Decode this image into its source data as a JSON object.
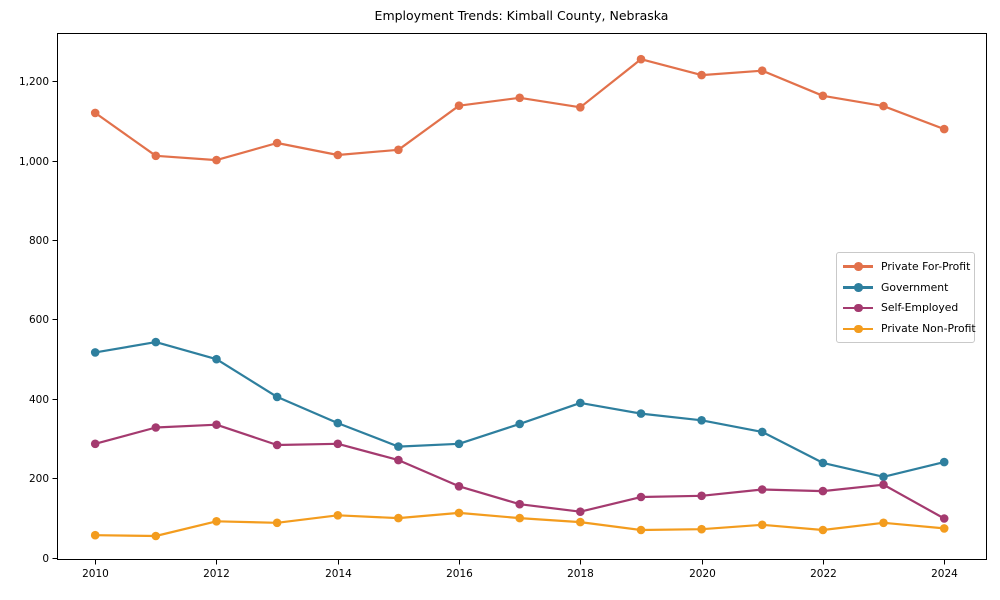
{
  "chart_data": {
    "type": "line",
    "title": "Employment Trends: Kimball County, Nebraska",
    "xlabel": "",
    "ylabel": "",
    "x": [
      2010,
      2011,
      2012,
      2013,
      2014,
      2015,
      2016,
      2017,
      2018,
      2019,
      2020,
      2021,
      2022,
      2023,
      2024
    ],
    "series": [
      {
        "name": "Private For-Profit",
        "color": "#E2714B",
        "values": [
          1120,
          1012,
          1001,
          1044,
          1014,
          1027,
          1138,
          1158,
          1134,
          1255,
          1215,
          1226,
          1163,
          1137,
          1079
        ]
      },
      {
        "name": "Government",
        "color": "#2E7F9E",
        "values": [
          517,
          543,
          500,
          405,
          339,
          280,
          287,
          337,
          390,
          363,
          346,
          317,
          239,
          204,
          241
        ]
      },
      {
        "name": "Self-Employed",
        "color": "#A43A6F",
        "values": [
          287,
          328,
          335,
          284,
          287,
          246,
          180,
          135,
          116,
          153,
          156,
          172,
          168,
          184,
          99
        ]
      },
      {
        "name": "Private Non-Profit",
        "color": "#F39C1E",
        "values": [
          57,
          55,
          92,
          88,
          107,
          100,
          113,
          100,
          90,
          70,
          72,
          83,
          70,
          88,
          74
        ]
      }
    ],
    "xlim": [
      2009.37,
      2024.69
    ],
    "ylim": [
      -3,
      1321
    ],
    "xticks": [
      2010,
      2012,
      2014,
      2016,
      2018,
      2020,
      2022,
      2024
    ],
    "xtick_labels": [
      "2010",
      "2012",
      "2014",
      "2016",
      "2018",
      "2020",
      "2022",
      "2024"
    ],
    "yticks": [
      0,
      200,
      400,
      600,
      800,
      1000,
      1200
    ],
    "ytick_labels": [
      "0",
      "200",
      "400",
      "600",
      "800",
      "1,000",
      "1,200"
    ],
    "grid": false,
    "legend_position": "center-right",
    "axis_color": "#000000",
    "background_color": "#ffffff"
  }
}
